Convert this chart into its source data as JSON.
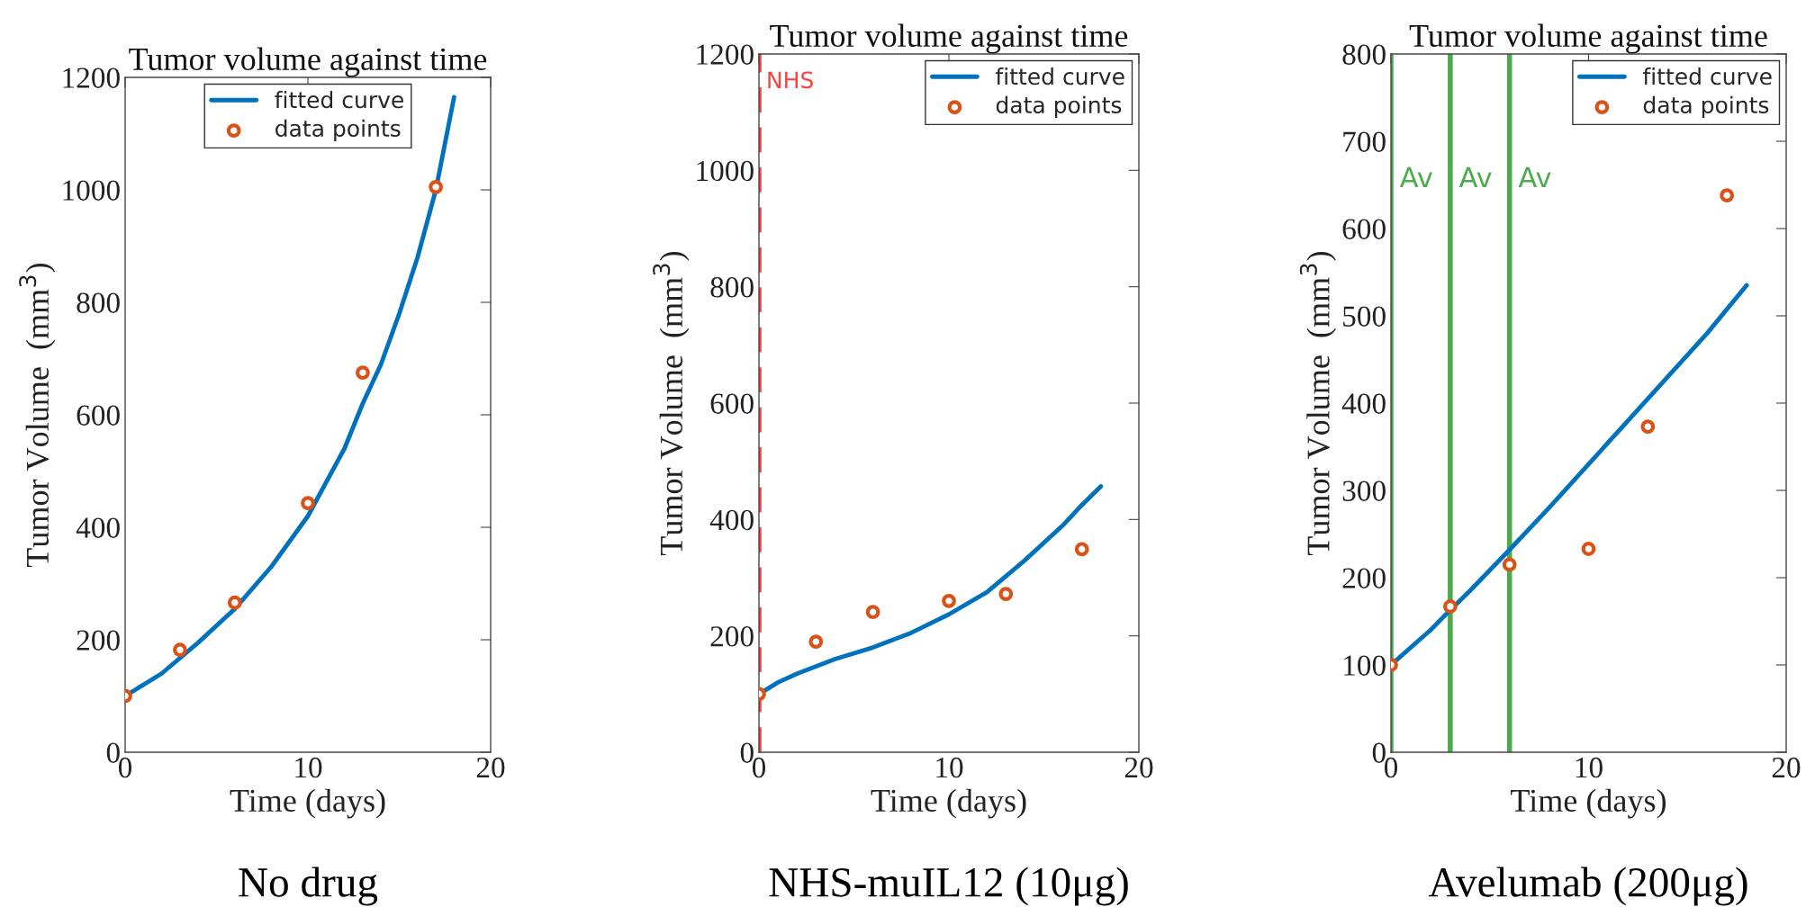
{
  "chart_data": [
    {
      "type": "line",
      "title": "Tumor volume against time",
      "xlabel": "Time (days)",
      "ylabel": "Tumor Volume  (mm$^{3}$)",
      "xlim": [
        0,
        20
      ],
      "xticks": [
        0,
        10,
        20
      ],
      "ylim": [
        0,
        1200
      ],
      "yticks": [
        0,
        200,
        400,
        600,
        800,
        1000,
        1200
      ],
      "grid": false,
      "legend": "top",
      "annotations": [
        "No drug"
      ],
      "series": [
        {
          "name": "fitted curve",
          "type": "line",
          "color": "#0072bd",
          "marker": "none",
          "line_style": "solid",
          "x": [
            0,
            2,
            4,
            6,
            8,
            10,
            12,
            13,
            14,
            15,
            16,
            17,
            18
          ],
          "values": [
            100,
            140,
            195,
            255,
            330,
            420,
            540,
            620,
            690,
            780,
            880,
            1000,
            1165
          ]
        },
        {
          "name": "data points",
          "type": "scatter",
          "color": "#d95319",
          "marker": "circle",
          "x": [
            0,
            3,
            6,
            10,
            13,
            17
          ],
          "values": [
            100,
            182,
            266,
            443,
            675,
            1005
          ]
        }
      ]
    },
    {
      "type": "line",
      "title": "Tumor volume against time",
      "xlabel": "Time (days)",
      "ylabel": "Tumor Volume  (mm$^{3}$)",
      "xlim": [
        0,
        20
      ],
      "xticks": [
        0,
        10,
        20
      ],
      "ylim": [
        0,
        1200
      ],
      "yticks": [
        0,
        200,
        400,
        600,
        800,
        1000,
        1200
      ],
      "grid": false,
      "legend": "top right",
      "annotations": [
        "NHS-muIL12 (10μg)"
      ],
      "ref_lines": [
        {
          "axis": "x",
          "value": 0,
          "label": "NHS",
          "color": "#ff4040",
          "line_style": "dashed"
        }
      ],
      "series": [
        {
          "name": "fitted curve",
          "type": "line",
          "color": "#0072bd",
          "marker": "none",
          "line_style": "solid",
          "x": [
            0,
            1,
            2,
            4,
            6,
            8,
            10,
            12,
            14,
            16,
            17,
            18
          ],
          "values": [
            100,
            120,
            135,
            160,
            180,
            205,
            237,
            275,
            330,
            390,
            425,
            457
          ]
        },
        {
          "name": "data points",
          "type": "scatter",
          "color": "#d95319",
          "marker": "circle",
          "x": [
            0,
            3,
            6,
            10,
            13,
            17
          ],
          "values": [
            100,
            190,
            241,
            260,
            272,
            349
          ]
        }
      ]
    },
    {
      "type": "line",
      "title": "Tumor volume against time",
      "xlabel": "Time (days)",
      "ylabel": "Tumor Volume  (mm$^{3}$)",
      "xlim": [
        0,
        20
      ],
      "xticks": [
        0,
        10,
        20
      ],
      "ylim": [
        0,
        800
      ],
      "yticks": [
        0,
        100,
        200,
        300,
        400,
        500,
        600,
        700,
        800
      ],
      "grid": false,
      "legend": "top right",
      "annotations": [
        "Avelumab (200μg)"
      ],
      "ref_lines": [
        {
          "axis": "x",
          "value": 0,
          "label": "Av",
          "color": "#4daa4d",
          "line_style": "solid"
        },
        {
          "axis": "x",
          "value": 3,
          "label": "Av",
          "color": "#4daa4d",
          "line_style": "solid"
        },
        {
          "axis": "x",
          "value": 6,
          "label": "Av",
          "color": "#4daa4d",
          "line_style": "solid"
        }
      ],
      "series": [
        {
          "name": "fitted curve",
          "type": "line",
          "color": "#0072bd",
          "marker": "none",
          "line_style": "solid",
          "x": [
            0,
            2,
            3,
            4,
            6,
            8,
            10,
            12,
            13,
            14,
            16,
            18
          ],
          "values": [
            100,
            140,
            163,
            185,
            232,
            280,
            330,
            380,
            405,
            430,
            480,
            535
          ]
        },
        {
          "name": "data points",
          "type": "scatter",
          "color": "#d95319",
          "marker": "circle",
          "x": [
            0,
            3,
            6,
            10,
            13,
            17
          ],
          "values": [
            100,
            167,
            215,
            233,
            373,
            638
          ]
        }
      ]
    }
  ]
}
